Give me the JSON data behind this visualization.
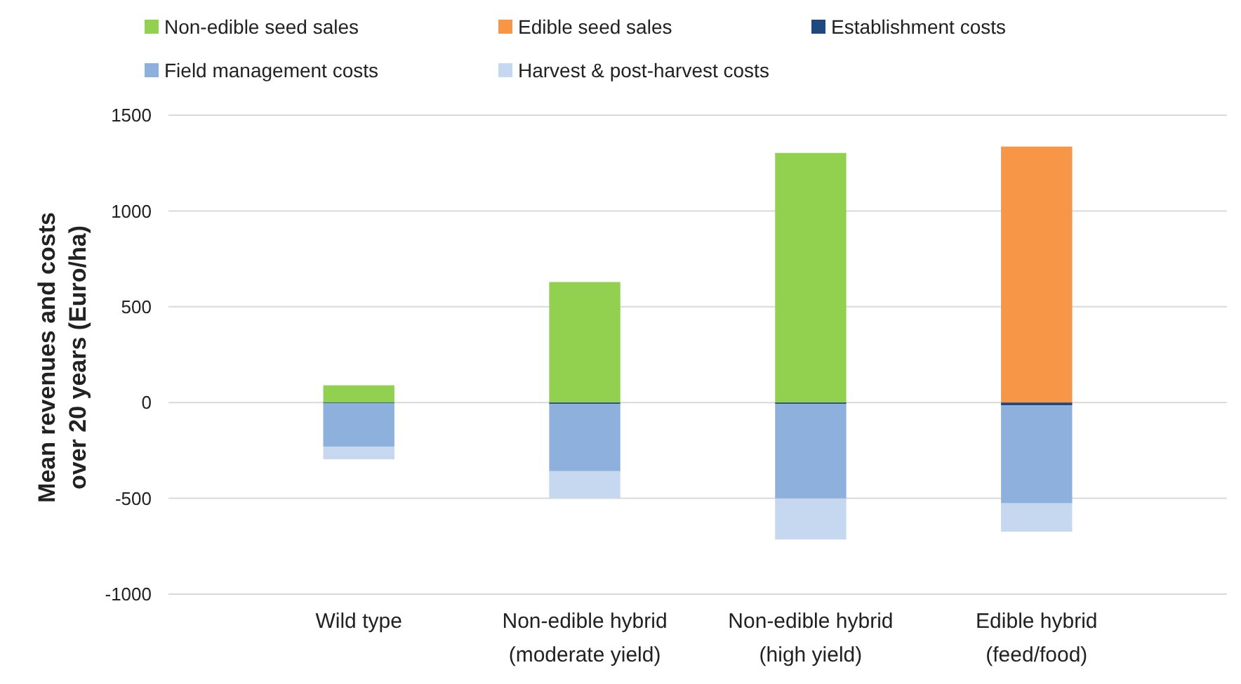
{
  "chart_data": {
    "type": "bar",
    "stacked": true,
    "ylabel": "Mean revenues and costs over 20 years (Euro/ha)",
    "categories": [
      "Wild type",
      "Non-edible hybrid (moderate yield)",
      "Non-edible hybrid (high yield)",
      "Edible hybrid (feed/food)"
    ],
    "series": [
      {
        "name": "Non-edible seed sales",
        "color": "#92d050",
        "values": [
          90,
          629,
          1303,
          null
        ]
      },
      {
        "name": "Edible seed sales",
        "color": "#f79646",
        "values": [
          null,
          null,
          null,
          1336
        ]
      },
      {
        "name": "Establishment costs",
        "color": "#1f497d",
        "values": [
          -3,
          -8,
          -8,
          -15
        ]
      },
      {
        "name": "Field management costs",
        "color": "#8eb0dc",
        "values": [
          -227,
          -350,
          -493,
          -511
        ]
      },
      {
        "name": "Harvest & post-harvest costs",
        "color": "#c6d8ef",
        "values": [
          -66,
          -143,
          -214,
          -148
        ]
      }
    ],
    "ylim": [
      -1000,
      1500
    ],
    "yticks": [
      -1000,
      -500,
      0,
      500,
      1000,
      1500
    ],
    "grid": "y",
    "legend": "top"
  }
}
